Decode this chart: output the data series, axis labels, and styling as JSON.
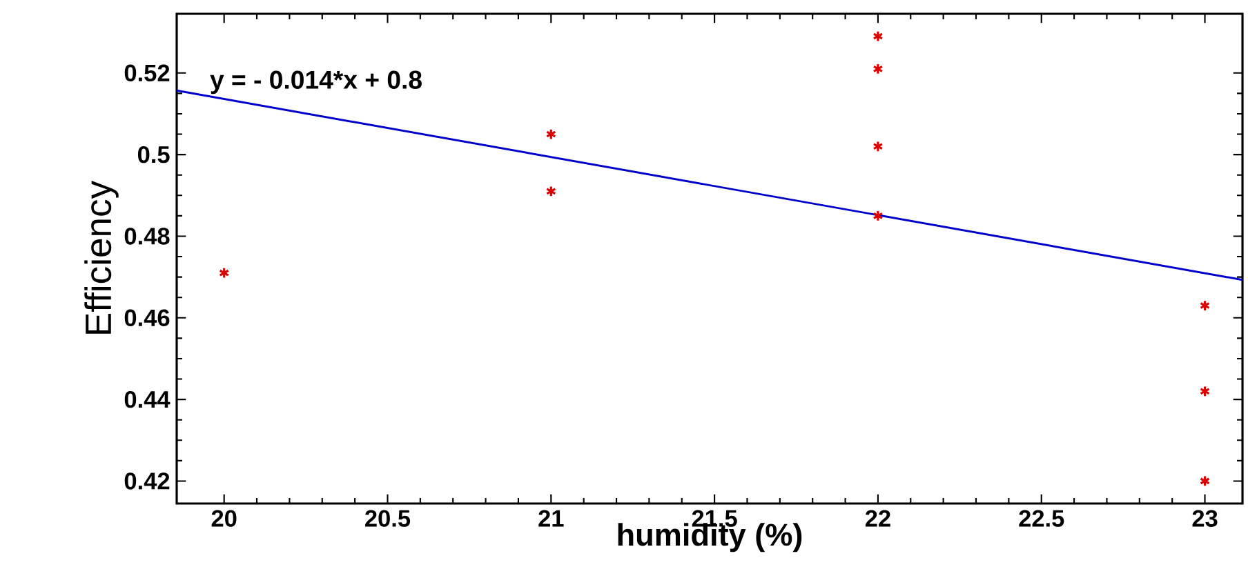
{
  "chart_data": {
    "type": "scatter",
    "xlabel": "humidity (%)",
    "ylabel": "Efficiency",
    "annotations": [
      "y = - 0.014*x + 0.8"
    ],
    "series": [
      {
        "marker": "cross",
        "color": "#dd0000",
        "x": [
          20,
          21,
          21,
          22,
          22,
          22,
          22,
          23,
          23,
          23
        ],
        "values": [
          0.471,
          0.505,
          0.491,
          0.529,
          0.521,
          0.502,
          0.485,
          0.463,
          0.442,
          0.42
        ]
      },
      {
        "type": "line",
        "color": "#0000cc",
        "x": [
          19.855,
          23.115
        ],
        "values": [
          0.5157,
          0.4693
        ]
      }
    ],
    "xlim": [
      19.855,
      23.115
    ],
    "ylim": [
      0.4145,
      0.5345
    ],
    "xticks": [
      20,
      20.5,
      21,
      21.5,
      22,
      22.5,
      23
    ],
    "yticks": [
      0.42,
      0.44,
      0.46,
      0.48,
      0.5,
      0.52
    ],
    "grid": false
  }
}
